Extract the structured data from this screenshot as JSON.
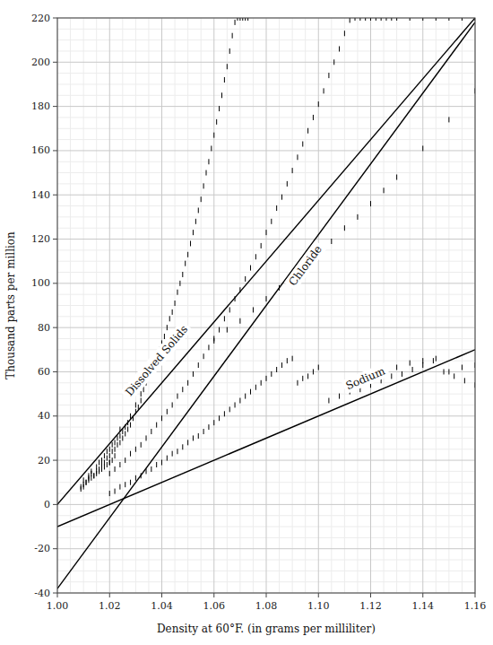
{
  "chart_data": {
    "type": "scatter",
    "xlabel": "Density at 60°F.  (in grams per milliliter)",
    "ylabel": "Thousand parts per million",
    "xlim": [
      1.0,
      1.16
    ],
    "ylim": [
      -40,
      220
    ],
    "xticks": [
      {
        "value": 1.0,
        "label": "1.00"
      },
      1.02,
      1.04,
      1.06,
      1.08,
      {
        "value": 1.1,
        "label": "1.10"
      },
      1.12,
      1.14,
      1.16
    ],
    "yticks": [
      -40,
      -20,
      0,
      20,
      40,
      60,
      80,
      100,
      120,
      140,
      160,
      180,
      200,
      220
    ],
    "grid": true,
    "series": [
      {
        "type": "line",
        "color": "#000000",
        "x": [
          1.0,
          1.16
        ],
        "values": [
          0,
          220
        ]
      },
      {
        "type": "line",
        "color": "#000000",
        "x": [
          1.0,
          1.16
        ],
        "values": [
          -38,
          218
        ]
      },
      {
        "type": "line",
        "color": "#000000",
        "x": [
          1.0,
          1.16
        ],
        "values": [
          -10,
          70
        ]
      },
      {
        "type": "scatter",
        "color": "#000000",
        "marker": "vline",
        "x": [
          1.01,
          1.01,
          1.011,
          1.012,
          1.012,
          1.013,
          1.013,
          1.014,
          1.015,
          1.015,
          1.016,
          1.016,
          1.017,
          1.017,
          1.018,
          1.018,
          1.019,
          1.019,
          1.02,
          1.02,
          1.02,
          1.021,
          1.021,
          1.022,
          1.022,
          1.022,
          1.023,
          1.023,
          1.024,
          1.024,
          1.024,
          1.025,
          1.025,
          1.026,
          1.026,
          1.027,
          1.027,
          1.028,
          1.028,
          1.029,
          1.03,
          1.03,
          1.031,
          1.032,
          1.032,
          1.033,
          1.034,
          1.035,
          1.036,
          1.037,
          1.038,
          1.039,
          1.04,
          1.041,
          1.042,
          1.043,
          1.044,
          1.045,
          1.046,
          1.047,
          1.048,
          1.049,
          1.05,
          1.051,
          1.052,
          1.053,
          1.054,
          1.055,
          1.056,
          1.057,
          1.058,
          1.059,
          1.06,
          1.061,
          1.062,
          1.063,
          1.064,
          1.065,
          1.066,
          1.067,
          1.068,
          1.069,
          1.07,
          1.071,
          1.072,
          1.073,
          1.009,
          1.009,
          1.01,
          1.011,
          1.012,
          1.013,
          1.014,
          1.015,
          1.016,
          1.017,
          1.018,
          1.019,
          1.02,
          1.021
        ],
        "values": [
          9,
          11,
          10,
          12,
          13,
          14,
          15,
          13,
          15,
          17,
          16,
          19,
          18,
          20,
          19,
          22,
          21,
          24,
          22,
          25,
          19,
          24,
          27,
          25,
          28,
          22,
          27,
          30,
          28,
          31,
          34,
          30,
          33,
          32,
          35,
          34,
          37,
          36,
          40,
          39,
          42,
          45,
          44,
          47,
          50,
          52,
          55,
          58,
          60,
          63,
          66,
          70,
          73,
          76,
          80,
          84,
          87,
          91,
          96,
          100,
          104,
          109,
          113,
          118,
          123,
          128,
          133,
          138,
          144,
          150,
          155,
          161,
          167,
          173,
          179,
          185,
          192,
          198,
          205,
          212,
          218,
          220,
          220,
          220,
          220,
          220,
          7,
          8,
          8,
          10,
          11,
          12,
          13,
          14,
          15,
          16,
          17,
          18,
          19,
          20
        ]
      },
      {
        "type": "scatter",
        "color": "#000000",
        "marker": "vline",
        "x": [
          1.02,
          1.022,
          1.024,
          1.026,
          1.028,
          1.03,
          1.032,
          1.034,
          1.036,
          1.038,
          1.04,
          1.042,
          1.044,
          1.046,
          1.048,
          1.05,
          1.052,
          1.054,
          1.056,
          1.058,
          1.06,
          1.062,
          1.064,
          1.066,
          1.068,
          1.07,
          1.072,
          1.074,
          1.076,
          1.078,
          1.08,
          1.082,
          1.084,
          1.086,
          1.088,
          1.09,
          1.092,
          1.094,
          1.096,
          1.098,
          1.1,
          1.102,
          1.104,
          1.106,
          1.108,
          1.11,
          1.112,
          1.114,
          1.116,
          1.118,
          1.12,
          1.122,
          1.124,
          1.126,
          1.128,
          1.13,
          1.135,
          1.14,
          1.145,
          1.15,
          1.155,
          1.16,
          1.06,
          1.065,
          1.07,
          1.075,
          1.08,
          1.085,
          1.09,
          1.095,
          1.1,
          1.105,
          1.11,
          1.115,
          1.12,
          1.125,
          1.13,
          1.14,
          1.15,
          1.16
        ],
        "values": [
          14,
          16,
          18,
          20,
          23,
          25,
          27,
          30,
          33,
          36,
          39,
          42,
          45,
          49,
          52,
          55,
          59,
          63,
          67,
          71,
          75,
          79,
          84,
          88,
          93,
          97,
          102,
          107,
          112,
          117,
          123,
          128,
          134,
          139,
          145,
          151,
          157,
          163,
          169,
          175,
          181,
          187,
          194,
          200,
          206,
          213,
          219,
          220,
          220,
          220,
          220,
          220,
          220,
          220,
          220,
          220,
          220,
          220,
          220,
          220,
          220,
          220,
          74,
          79,
          83,
          88,
          93,
          98,
          103,
          108,
          114,
          119,
          125,
          130,
          136,
          142,
          148,
          161,
          174,
          187
        ]
      },
      {
        "type": "scatter",
        "color": "#000000",
        "marker": "vline",
        "x": [
          1.02,
          1.022,
          1.024,
          1.026,
          1.028,
          1.03,
          1.032,
          1.034,
          1.036,
          1.038,
          1.04,
          1.042,
          1.044,
          1.046,
          1.048,
          1.05,
          1.052,
          1.054,
          1.056,
          1.058,
          1.06,
          1.062,
          1.064,
          1.066,
          1.068,
          1.07,
          1.072,
          1.074,
          1.076,
          1.078,
          1.08,
          1.082,
          1.084,
          1.086,
          1.088,
          1.09,
          1.092,
          1.094,
          1.096,
          1.098,
          1.1,
          1.104,
          1.108,
          1.112,
          1.116,
          1.12,
          1.124,
          1.128,
          1.132,
          1.136,
          1.14,
          1.144,
          1.148,
          1.152,
          1.156,
          1.16,
          1.13,
          1.135,
          1.14,
          1.145,
          1.15,
          1.155,
          1.16
        ],
        "values": [
          5,
          6,
          8,
          9,
          10,
          12,
          13,
          15,
          16,
          18,
          19,
          21,
          23,
          24,
          26,
          28,
          30,
          31,
          33,
          35,
          37,
          39,
          41,
          43,
          45,
          47,
          49,
          51,
          53,
          55,
          57,
          59,
          61,
          63,
          65,
          66,
          55,
          57,
          58,
          60,
          62,
          47,
          49,
          51,
          52,
          54,
          56,
          58,
          59,
          61,
          63,
          65,
          60,
          58,
          56,
          54,
          62,
          64,
          65,
          66,
          60,
          62,
          63
        ]
      }
    ],
    "annotations": [
      {
        "text": "Dissolved Solids",
        "x": 1.038,
        "y": 65
      },
      {
        "text": "Chloride",
        "x": 1.095,
        "y": 108
      },
      {
        "text": "Sodium",
        "x": 1.118,
        "y": 57
      }
    ]
  }
}
